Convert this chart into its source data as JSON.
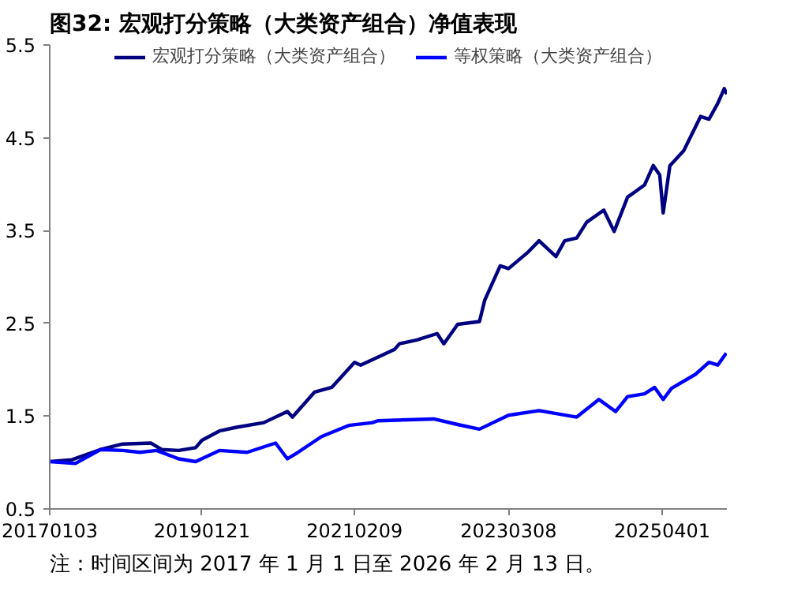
{
  "chart_data": {
    "type": "line",
    "title": "图32:  宏观打分策略（大类资产组合）净值表现",
    "annotations": [
      "注：时间区间为 2017 年 1 月 1 日至 2026 年 2 月 13 日。"
    ],
    "xlim": [
      "2017-01-03",
      "2026-02-13"
    ],
    "xticks": [
      {
        "value": "2017-01-03",
        "label": "20170103"
      },
      {
        "value": "2019-01-21",
        "label": "20190121"
      },
      {
        "value": "2021-02-09",
        "label": "20210209"
      },
      {
        "value": "2023-03-08",
        "label": "20230308"
      },
      {
        "value": "2025-04-01",
        "label": "20250401"
      }
    ],
    "ylim": [
      0.5,
      5.5
    ],
    "yticks": [
      0.5,
      1.5,
      2.5,
      3.5,
      4.5,
      5.5
    ],
    "legend": "top",
    "line_style": "solid",
    "series": [
      {
        "name": "宏观打分策略（大类资产组合）",
        "color": "#000080",
        "x": [
          "2017-01-03",
          "2017-04-22",
          "2017-09-09",
          "2017-12-28",
          "2018-05-16",
          "2018-07-07",
          "2018-09-29",
          "2018-12-21",
          "2019-01-21",
          "2019-04-17",
          "2019-07-10",
          "2019-11-21",
          "2020-03-16",
          "2020-04-10",
          "2020-07-28",
          "2020-10-20",
          "2021-02-09",
          "2021-03-11",
          "2021-06-28",
          "2021-08-25",
          "2021-09-18",
          "2021-12-12",
          "2022-03-22",
          "2022-04-24",
          "2022-07-01",
          "2022-10-16",
          "2022-11-11",
          "2023-01-26",
          "2023-03-08",
          "2023-06-08",
          "2023-08-05",
          "2023-10-27",
          "2023-12-09",
          "2024-02-06",
          "2024-03-26",
          "2024-06-18",
          "2024-08-08",
          "2024-10-13",
          "2025-01-04",
          "2025-02-16",
          "2025-03-20",
          "2025-04-06",
          "2025-05-09",
          "2025-07-16",
          "2025-10-07",
          "2025-11-17",
          "2025-12-30",
          "2026-01-31",
          "2026-02-13"
        ],
        "values": [
          1.01,
          1.03,
          1.14,
          1.2,
          1.21,
          1.14,
          1.13,
          1.16,
          1.24,
          1.34,
          1.38,
          1.43,
          1.55,
          1.49,
          1.76,
          1.81,
          2.08,
          2.05,
          2.16,
          2.22,
          2.28,
          2.32,
          2.39,
          2.28,
          2.49,
          2.52,
          2.75,
          3.12,
          3.09,
          3.26,
          3.39,
          3.22,
          3.39,
          3.42,
          3.59,
          3.72,
          3.49,
          3.86,
          3.99,
          4.2,
          4.1,
          3.69,
          4.2,
          4.36,
          4.73,
          4.7,
          4.87,
          5.03,
          4.97
        ]
      },
      {
        "name": "等权策略（大类资产组合）",
        "color": "#0000ff",
        "x": [
          "2017-01-03",
          "2017-05-09",
          "2017-09-10",
          "2017-12-28",
          "2018-03-22",
          "2018-06-12",
          "2018-09-29",
          "2018-12-21",
          "2019-04-17",
          "2019-08-31",
          "2020-01-18",
          "2020-03-16",
          "2020-05-07",
          "2020-08-31",
          "2021-01-11",
          "2021-05-08",
          "2021-06-03",
          "2022-03-05",
          "2022-07-01",
          "2022-10-16",
          "2023-03-08",
          "2023-08-05",
          "2024-02-06",
          "2024-05-25",
          "2024-08-15",
          "2024-10-13",
          "2025-01-04",
          "2025-02-23",
          "2025-04-06",
          "2025-05-17",
          "2025-09-11",
          "2025-11-17",
          "2025-12-30",
          "2026-02-10"
        ],
        "values": [
          1.01,
          0.99,
          1.14,
          1.13,
          1.11,
          1.13,
          1.04,
          1.01,
          1.13,
          1.11,
          1.21,
          1.04,
          1.11,
          1.28,
          1.4,
          1.43,
          1.45,
          1.47,
          1.41,
          1.36,
          1.51,
          1.56,
          1.49,
          1.68,
          1.55,
          1.71,
          1.74,
          1.81,
          1.68,
          1.8,
          1.95,
          2.08,
          2.05,
          2.18
        ]
      }
    ]
  }
}
